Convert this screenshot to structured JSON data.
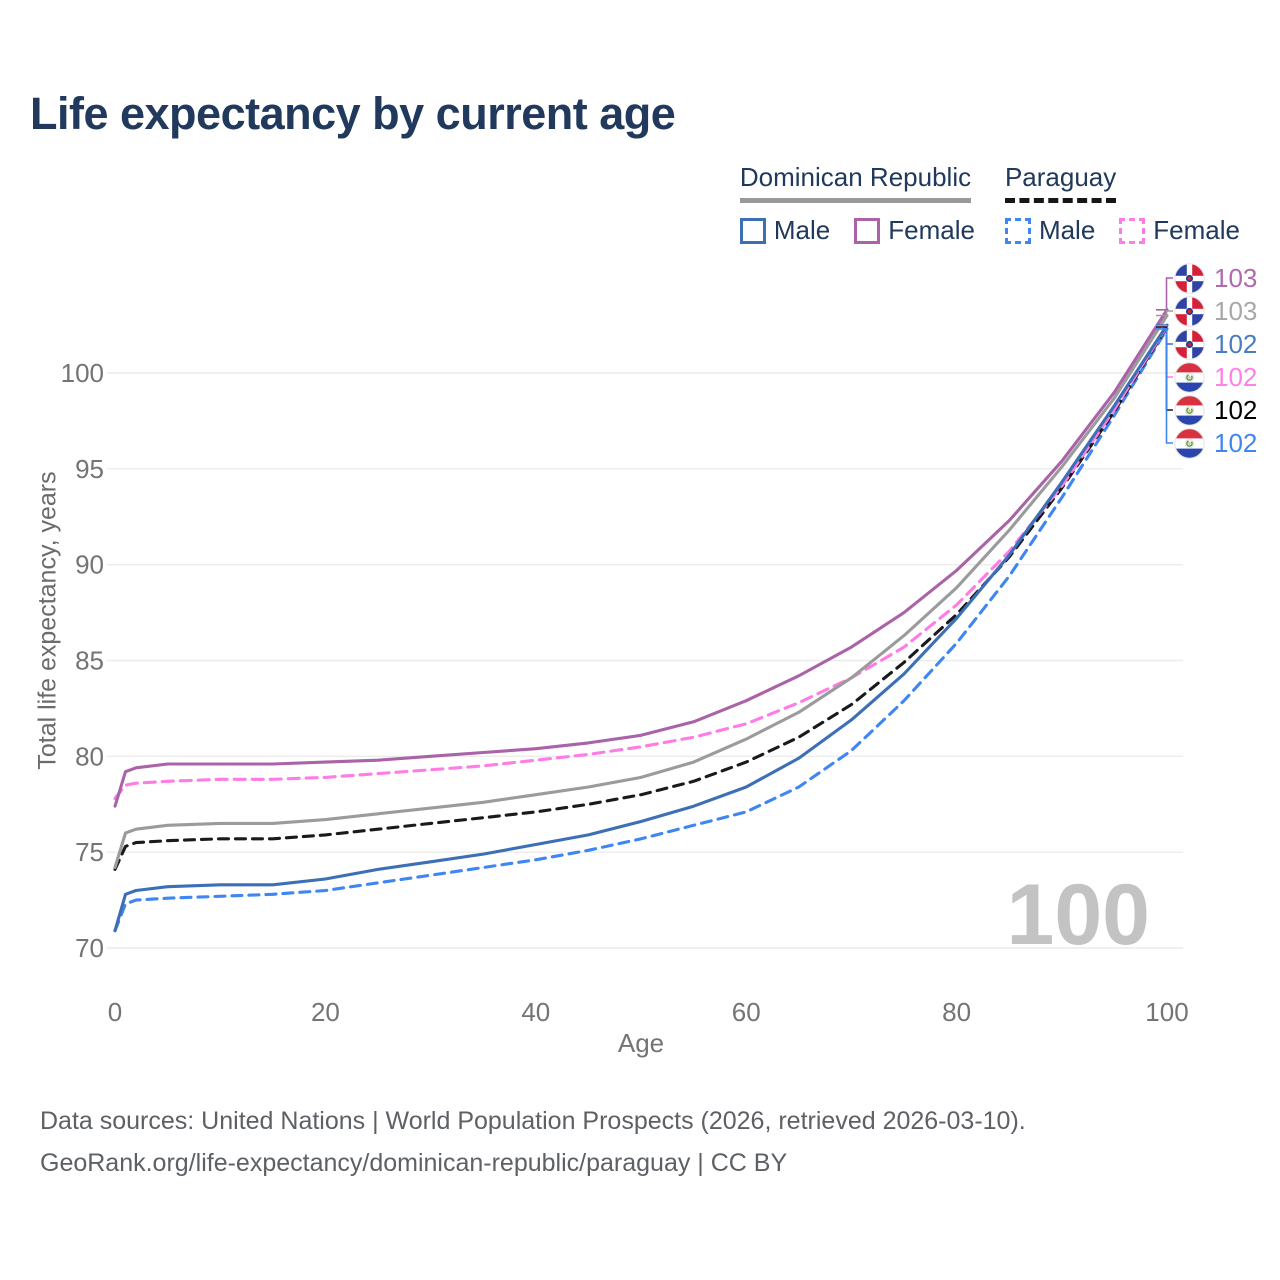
{
  "title": "Life expectancy by current age",
  "watermark": "100",
  "footer": {
    "line1": "Data sources: United Nations | World Population Prospects (2026, retrieved 2026-03-10).",
    "line2": "GeoRank.org/life-expectancy/dominican-republic/paraguay | CC BY"
  },
  "legend": {
    "groups": [
      {
        "label": "Dominican Republic",
        "line": {
          "color": "#999999",
          "style": "solid"
        },
        "items": [
          {
            "label": "Male",
            "color": "#3d6fb7",
            "dash": false
          },
          {
            "label": "Female",
            "color": "#aa62a8",
            "dash": false
          }
        ]
      },
      {
        "label": "Paraguay",
        "line": {
          "color": "#161616",
          "style": "dashed"
        },
        "items": [
          {
            "label": "Male",
            "color": "#3f86f2",
            "dash": true
          },
          {
            "label": "Female",
            "color": "#ff7be5",
            "dash": true
          }
        ]
      }
    ]
  },
  "chart_data": {
    "type": "line",
    "title": "Life expectancy by current age",
    "xlabel": "Age",
    "ylabel": "Total life expectancy, years",
    "x_ticks": [
      0,
      20,
      40,
      60,
      80,
      100
    ],
    "y_ticks": [
      70,
      75,
      80,
      85,
      90,
      95,
      100
    ],
    "xlim": [
      0,
      100
    ],
    "ylim": [
      70,
      100
    ],
    "grid": "horizontal",
    "legend_position": "top-right",
    "ages": [
      0,
      1,
      2,
      5,
      10,
      15,
      20,
      25,
      30,
      35,
      40,
      45,
      50,
      55,
      60,
      65,
      70,
      75,
      80,
      85,
      90,
      95,
      100
    ],
    "series": [
      {
        "name": "Dominican Republic Female",
        "country": "Dominican Republic",
        "sex": "Female",
        "color": "#aa62a8",
        "dash": null,
        "flag": "do",
        "end_label": "103",
        "end_label_color": "#b168ac",
        "values": [
          77.4,
          79.2,
          79.4,
          79.6,
          79.6,
          79.6,
          79.7,
          79.8,
          80.0,
          80.2,
          80.4,
          80.7,
          81.1,
          81.8,
          82.9,
          84.2,
          85.7,
          87.5,
          89.7,
          92.3,
          95.4,
          99.0,
          103.3
        ]
      },
      {
        "name": "Dominican Republic Total",
        "country": "Dominican Republic",
        "sex": "Both",
        "color": "#9b9b9b",
        "dash": null,
        "flag": "do",
        "end_label": "103",
        "end_label_color": "#a8a8a8",
        "values": [
          74.2,
          76.0,
          76.2,
          76.4,
          76.5,
          76.5,
          76.7,
          77.0,
          77.3,
          77.6,
          78.0,
          78.4,
          78.9,
          79.7,
          80.9,
          82.3,
          84.1,
          86.3,
          88.8,
          91.8,
          95.1,
          98.7,
          103.0
        ]
      },
      {
        "name": "Dominican Republic Male",
        "country": "Dominican Republic",
        "sex": "Male",
        "color": "#3d6fb7",
        "dash": null,
        "flag": "do",
        "end_label": "102",
        "end_label_color": "#4a7cc2",
        "values": [
          70.9,
          72.8,
          73.0,
          73.2,
          73.3,
          73.3,
          73.6,
          74.1,
          74.5,
          74.9,
          75.4,
          75.9,
          76.6,
          77.4,
          78.4,
          79.9,
          81.9,
          84.3,
          87.2,
          90.5,
          94.3,
          98.3,
          102.5
        ]
      },
      {
        "name": "Paraguay Female",
        "country": "Paraguay",
        "sex": "Female",
        "color": "#ff7be5",
        "dash": "11 7",
        "flag": "py",
        "end_label": "102",
        "end_label_color": "#ff80e8",
        "values": [
          77.8,
          78.5,
          78.6,
          78.7,
          78.8,
          78.8,
          78.9,
          79.1,
          79.3,
          79.5,
          79.8,
          80.1,
          80.5,
          81.0,
          81.7,
          82.8,
          84.1,
          85.7,
          87.9,
          90.7,
          94.1,
          98.1,
          102.45
        ]
      },
      {
        "name": "Paraguay Total",
        "country": "Paraguay",
        "sex": "Both",
        "color": "#1a1a1a",
        "dash": "10 7",
        "flag": "py",
        "end_label": "102",
        "end_label_color": "#000000",
        "values": [
          74.1,
          75.3,
          75.5,
          75.6,
          75.7,
          75.7,
          75.9,
          76.2,
          76.5,
          76.8,
          77.1,
          77.5,
          78.0,
          78.7,
          79.7,
          81.0,
          82.7,
          84.9,
          87.4,
          90.4,
          94.0,
          98.0,
          102.4
        ]
      },
      {
        "name": "Paraguay Male",
        "country": "Paraguay",
        "sex": "Male",
        "color": "#3f86f2",
        "dash": "10 7",
        "flag": "py",
        "end_label": "102",
        "end_label_color": "#3f86f2",
        "values": [
          70.9,
          72.3,
          72.5,
          72.6,
          72.7,
          72.8,
          73.0,
          73.4,
          73.8,
          74.2,
          74.6,
          75.1,
          75.7,
          76.4,
          77.1,
          78.4,
          80.3,
          82.9,
          85.9,
          89.4,
          93.5,
          97.8,
          102.3
        ]
      }
    ]
  }
}
